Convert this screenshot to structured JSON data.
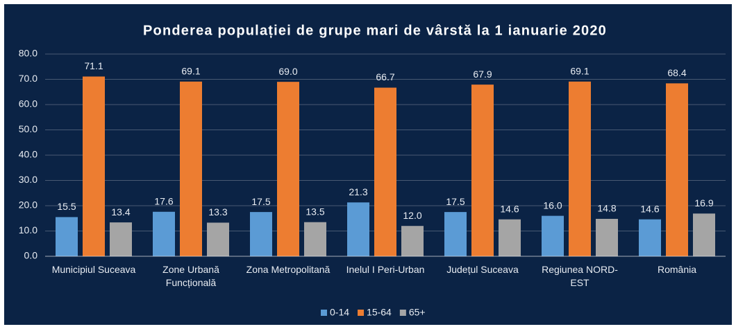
{
  "chart_data": {
    "type": "bar",
    "title": "Ponderea populației de grupe mari de vârstă la 1 ianuarie 2020",
    "categories": [
      "Municipiul Suceava",
      "Zone Urbană Funcțională",
      "Zona Metropolitană",
      "Inelul I Peri-Urban",
      "Județul Suceava",
      "Regiunea NORD-EST",
      "România"
    ],
    "series": [
      {
        "name": "0-14",
        "color": "#5b9bd5",
        "values": [
          15.5,
          17.6,
          17.5,
          21.3,
          17.5,
          16.0,
          14.6
        ],
        "value_labels": [
          "15.5",
          "17.6",
          "17.5",
          "21.3",
          "17.5",
          "16.0",
          "14.6"
        ]
      },
      {
        "name": "15-64",
        "color": "#ed7d31",
        "values": [
          71.1,
          69.1,
          69.0,
          66.7,
          67.9,
          69.1,
          68.4
        ],
        "value_labels": [
          "71.1",
          "69.1",
          "69.0",
          "66.7",
          "67.9",
          "69.1",
          "68.4"
        ]
      },
      {
        "name": "65+",
        "color": "#a5a5a5",
        "values": [
          13.4,
          13.3,
          13.5,
          12.0,
          14.6,
          14.8,
          16.9
        ],
        "value_labels": [
          "13.4",
          "13.3",
          "13.5",
          "12.0",
          "14.6",
          "14.8",
          "16.9"
        ]
      }
    ],
    "ylim": [
      0,
      80
    ],
    "yticks": [
      {
        "value": 0,
        "label": "0.0"
      },
      {
        "value": 10,
        "label": "10.0"
      },
      {
        "value": 20,
        "label": "20.0"
      },
      {
        "value": 30,
        "label": "30.0"
      },
      {
        "value": 40,
        "label": "40.0"
      },
      {
        "value": 50,
        "label": "50.0"
      },
      {
        "value": 60,
        "label": "60.0"
      },
      {
        "value": 70,
        "label": "70.0"
      },
      {
        "value": 80,
        "label": "80.0"
      }
    ],
    "grid": true,
    "legend": "bottom"
  }
}
